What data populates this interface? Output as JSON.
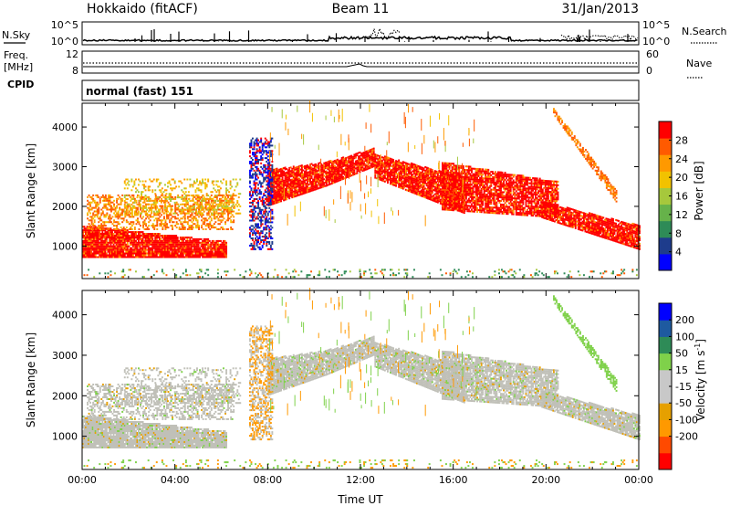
{
  "header": {
    "radar": "Hokkaido (fitACF)",
    "beam": "Beam 11",
    "date": "31/Jan/2013"
  },
  "top_panels": {
    "nsky_label": "N.Sky",
    "nsearch_label": "N.Search",
    "noise_ticks": [
      "10^5",
      "10^0"
    ],
    "freq_label_1": "Freq.",
    "freq_label_2": "[MHz]",
    "freq_ticks": [
      "12",
      "8"
    ],
    "nave_label": "Nave",
    "nave_ticks": [
      "60",
      "0"
    ],
    "cpid_label": "CPID",
    "cpid_text": "normal (fast) 151"
  },
  "colors": {
    "power": [
      "#0000ff",
      "#1e3c8c",
      "#2e8b57",
      "#66b24a",
      "#a6c83c",
      "#f2c200",
      "#ff9900",
      "#ff5a00",
      "#ff0000"
    ],
    "velocity": [
      "#ff0000",
      "#ff4a00",
      "#ff9900",
      "#e6a000",
      "#c8c8c8",
      "#c8c8c8",
      "#7fd14a",
      "#2e8b57",
      "#1e5aa0",
      "#0000ff"
    ],
    "ground_scatter": "#c0c0b8"
  },
  "chart_data": [
    {
      "type": "heatmap",
      "name": "power",
      "ylabel": "Slant Range [km]",
      "y_ticks": [
        "1000",
        "2000",
        "3000",
        "4000"
      ],
      "ylim": [
        180,
        4600
      ],
      "x_ticks": [
        "00:00",
        "04:00",
        "08:00",
        "12:00",
        "16:00",
        "20:00",
        "00:00"
      ],
      "xlim_hours": [
        0,
        24
      ],
      "colorbar_label": "Power [dB]",
      "colorbar_ticks": [
        "4",
        "8",
        "12",
        "16",
        "20",
        "24",
        "28"
      ],
      "colorbar_range": [
        0,
        32
      ]
    },
    {
      "type": "heatmap",
      "name": "velocity",
      "ylabel": "Slant Range [km]",
      "y_ticks": [
        "1000",
        "2000",
        "3000",
        "4000"
      ],
      "ylim": [
        180,
        4600
      ],
      "x_ticks": [
        "00:00",
        "04:00",
        "08:00",
        "12:00",
        "16:00",
        "20:00",
        "00:00"
      ],
      "xlabel": "Time UT",
      "xlim_hours": [
        0,
        24
      ],
      "colorbar_label": "Velocity [m s",
      "colorbar_label_sup": "-1",
      "colorbar_label_end": "]",
      "colorbar_ticks": [
        "200",
        "100",
        "50",
        "15",
        "-15",
        "-50",
        "-100",
        "-200"
      ]
    }
  ]
}
